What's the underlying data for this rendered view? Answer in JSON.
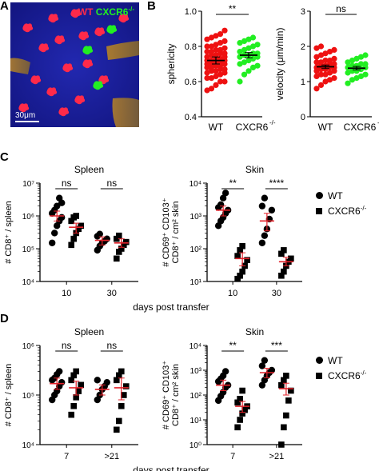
{
  "panels": {
    "A": {
      "letter": "A",
      "legend_wt": "WT",
      "legend_ko": "CXCR6",
      "legend_ko_sup": "-/-",
      "scale_bar": "30μm",
      "colors": {
        "wt": "#ff2a4a",
        "ko": "#22ee22",
        "background": "#1b1f9c"
      }
    },
    "B": {
      "letter": "B"
    },
    "C": {
      "letter": "C",
      "legend": {
        "wt": "WT",
        "ko": "CXCR6",
        "ko_sup": "-/-"
      }
    },
    "D": {
      "letter": "D",
      "legend": {
        "wt": "WT",
        "ko": "CXCR6",
        "ko_sup": "-/-"
      }
    }
  },
  "chart_data": [
    {
      "id": "B-sphericity",
      "type": "scatter",
      "ylabel": "sphericity",
      "ylim": [
        0.4,
        1.0
      ],
      "yticks": [
        "0.4",
        "0.6",
        "0.8",
        "1.0"
      ],
      "categories": [
        "WT",
        "CXCR6",
        "-/-"
      ],
      "colors": [
        "#ee1111",
        "#22ee22"
      ],
      "groups": [
        {
          "mean": 0.72,
          "sem": 0.02,
          "values": [
            0.55,
            0.56,
            0.58,
            0.6,
            0.6,
            0.62,
            0.62,
            0.63,
            0.64,
            0.65,
            0.65,
            0.66,
            0.66,
            0.67,
            0.67,
            0.68,
            0.68,
            0.69,
            0.69,
            0.7,
            0.7,
            0.7,
            0.71,
            0.71,
            0.72,
            0.72,
            0.72,
            0.73,
            0.73,
            0.74,
            0.74,
            0.75,
            0.75,
            0.76,
            0.76,
            0.77,
            0.77,
            0.78,
            0.78,
            0.79,
            0.8,
            0.8,
            0.81,
            0.82,
            0.83,
            0.84,
            0.85,
            0.86,
            0.87,
            0.89
          ]
        },
        {
          "mean": 0.75,
          "sem": 0.015,
          "values": [
            0.6,
            0.64,
            0.66,
            0.68,
            0.69,
            0.7,
            0.71,
            0.72,
            0.73,
            0.74,
            0.74,
            0.75,
            0.75,
            0.76,
            0.76,
            0.77,
            0.78,
            0.79,
            0.8,
            0.81,
            0.82,
            0.83,
            0.84,
            0.85
          ]
        }
      ],
      "significance": [
        {
          "label": "**",
          "from": 0,
          "to": 1
        }
      ]
    },
    {
      "id": "B-velocity",
      "type": "scatter",
      "ylabel": "velocity (μm/min)",
      "ylim": [
        0,
        3
      ],
      "yticks": [
        "0",
        "1",
        "2",
        "3"
      ],
      "categories": [
        "WT",
        "CXCR6",
        "-/-"
      ],
      "colors": [
        "#ee1111",
        "#22ee22"
      ],
      "groups": [
        {
          "mean": 1.42,
          "sem": 0.05,
          "values": [
            0.8,
            0.9,
            1.0,
            1.05,
            1.1,
            1.15,
            1.2,
            1.2,
            1.25,
            1.3,
            1.3,
            1.35,
            1.35,
            1.4,
            1.4,
            1.4,
            1.45,
            1.45,
            1.5,
            1.5,
            1.55,
            1.55,
            1.6,
            1.6,
            1.65,
            1.7,
            1.75,
            1.8,
            1.85,
            1.9,
            1.95,
            2.0
          ]
        },
        {
          "mean": 1.38,
          "sem": 0.05,
          "values": [
            0.95,
            1.05,
            1.1,
            1.15,
            1.2,
            1.25,
            1.3,
            1.3,
            1.35,
            1.4,
            1.4,
            1.45,
            1.45,
            1.5,
            1.5,
            1.55,
            1.6,
            1.65,
            1.7,
            1.75
          ]
        }
      ],
      "significance": [
        {
          "label": "ns",
          "from": 0,
          "to": 1
        }
      ]
    },
    {
      "id": "C-spleen",
      "type": "scatter",
      "title": "Spleen",
      "ylabel": "# CD8⁺ / spleen",
      "xlabel": "days post transfer",
      "log": true,
      "ylim_exp": [
        4,
        7
      ],
      "yticks": [
        "10⁴",
        "10⁵",
        "10⁶",
        "10⁷"
      ],
      "categories": [
        "10",
        "30"
      ],
      "series": [
        {
          "name": "WT",
          "groups": [
            {
              "mean": 1000000,
              "sem_lo": 700000,
              "sem_hi": 1400000,
              "values": [
                150000,
                300000,
                500000,
                700000,
                900000,
                1200000,
                1500000,
                2000000,
                3500000,
                2500000
              ]
            },
            {
              "mean": 180000,
              "sem_lo": 130000,
              "sem_hi": 230000,
              "values": [
                90000,
                120000,
                150000,
                170000,
                200000,
                240000,
                280000
              ]
            }
          ]
        },
        {
          "name": "CXCR6-/-",
          "groups": [
            {
              "mean": 450000,
              "sem_lo": 300000,
              "sem_hi": 600000,
              "values": [
                130000,
                200000,
                300000,
                400000,
                500000,
                700000,
                900000,
                1000000
              ]
            },
            {
              "mean": 150000,
              "sem_lo": 110000,
              "sem_hi": 200000,
              "values": [
                50000,
                80000,
                100000,
                130000,
                160000,
                200000,
                250000
              ]
            }
          ]
        }
      ],
      "significance": [
        {
          "label": "ns",
          "group": 0
        },
        {
          "label": "ns",
          "group": 1
        }
      ]
    },
    {
      "id": "C-skin",
      "type": "scatter",
      "title": "Skin",
      "ylabel": "# CD69⁺ CD103⁺ CD8⁺ / cm² skin",
      "xlabel": "days post transfer",
      "log": true,
      "ylim_exp": [
        1,
        4
      ],
      "yticks": [
        "10¹",
        "10²",
        "10³",
        "10⁴"
      ],
      "categories": [
        "10",
        "30"
      ],
      "series": [
        {
          "name": "WT",
          "groups": [
            {
              "mean": 1500,
              "sem_lo": 1000,
              "sem_hi": 2000,
              "values": [
                500,
                700,
                900,
                1200,
                1500,
                1800,
                2200,
                3500,
                5000
              ]
            },
            {
              "mean": 700,
              "sem_lo": 350,
              "sem_hi": 1200,
              "values": [
                150,
                250,
                400,
                800,
                1500,
                2000,
                3500
              ]
            }
          ]
        },
        {
          "name": "CXCR6-/-",
          "groups": [
            {
              "mean": 50,
              "sem_lo": 30,
              "sem_hi": 75,
              "values": [
                12,
                15,
                20,
                30,
                45,
                60,
                90,
                120
              ]
            },
            {
              "mean": 40,
              "sem_lo": 30,
              "sem_hi": 55,
              "values": [
                15,
                20,
                30,
                40,
                50,
                70,
                90
              ]
            }
          ]
        }
      ],
      "significance": [
        {
          "label": "**",
          "group": 0
        },
        {
          "label": "****",
          "group": 1
        }
      ]
    },
    {
      "id": "D-spleen",
      "type": "scatter",
      "title": "Spleen",
      "ylabel": "# CD8⁺ / spleen",
      "xlabel": "days post transfer",
      "log": true,
      "ylim_exp": [
        4,
        6
      ],
      "yticks": [
        "10⁴",
        "10⁵",
        "10⁶"
      ],
      "categories": [
        "7",
        ">21"
      ],
      "series": [
        {
          "name": "WT",
          "groups": [
            {
              "mean": 170000,
              "sem_lo": 130000,
              "sem_hi": 220000,
              "values": [
                80000,
                100000,
                120000,
                150000,
                180000,
                200000,
                220000,
                260000,
                300000
              ]
            },
            {
              "mean": 130000,
              "sem_lo": 100000,
              "sem_hi": 160000,
              "values": [
                80000,
                100000,
                130000,
                150000,
                180000,
                200000
              ]
            }
          ]
        },
        {
          "name": "CXCR6-/-",
          "groups": [
            {
              "mean": 140000,
              "sem_lo": 100000,
              "sem_hi": 190000,
              "values": [
                40000,
                60000,
                90000,
                120000,
                160000,
                200000,
                250000,
                300000
              ]
            },
            {
              "mean": 140000,
              "sem_lo": 80000,
              "sem_hi": 220000,
              "values": [
                20000,
                30000,
                60000,
                100000,
                150000,
                200000,
                250000,
                300000
              ]
            }
          ]
        }
      ],
      "significance": [
        {
          "label": "ns",
          "group": 0
        },
        {
          "label": "ns",
          "group": 1
        }
      ]
    },
    {
      "id": "D-skin",
      "type": "scatter",
      "title": "Skin",
      "ylabel": "# CD69⁺ CD103⁺ CD8⁺ / cm² skin",
      "xlabel": "days post transfer",
      "log": true,
      "ylim_exp": [
        0,
        4
      ],
      "yticks": [
        "10⁰",
        "10¹",
        "10²",
        "10³",
        "10⁴"
      ],
      "categories": [
        "7",
        ">21"
      ],
      "series": [
        {
          "name": "WT",
          "groups": [
            {
              "mean": 250,
              "sem_lo": 150,
              "sem_hi": 400,
              "values": [
                60,
                90,
                130,
                200,
                250,
                350,
                450,
                600,
                900
              ]
            },
            {
              "mean": 800,
              "sem_lo": 500,
              "sem_hi": 1200,
              "values": [
                250,
                400,
                600,
                800,
                1000,
                1500,
                2500
              ]
            }
          ]
        },
        {
          "name": "CXCR6-/-",
          "groups": [
            {
              "mean": 35,
              "sem_lo": 20,
              "sem_hi": 55,
              "values": [
                5,
                10,
                18,
                25,
                35,
                50,
                70,
                150
              ]
            },
            {
              "mean": 180,
              "sem_lo": 100,
              "sem_hi": 300,
              "values": [
                1,
                5,
                15,
                60,
                150,
                250,
                400,
                600
              ]
            }
          ]
        }
      ],
      "significance": [
        {
          "label": "**",
          "group": 0
        },
        {
          "label": "***",
          "group": 1
        }
      ]
    }
  ]
}
